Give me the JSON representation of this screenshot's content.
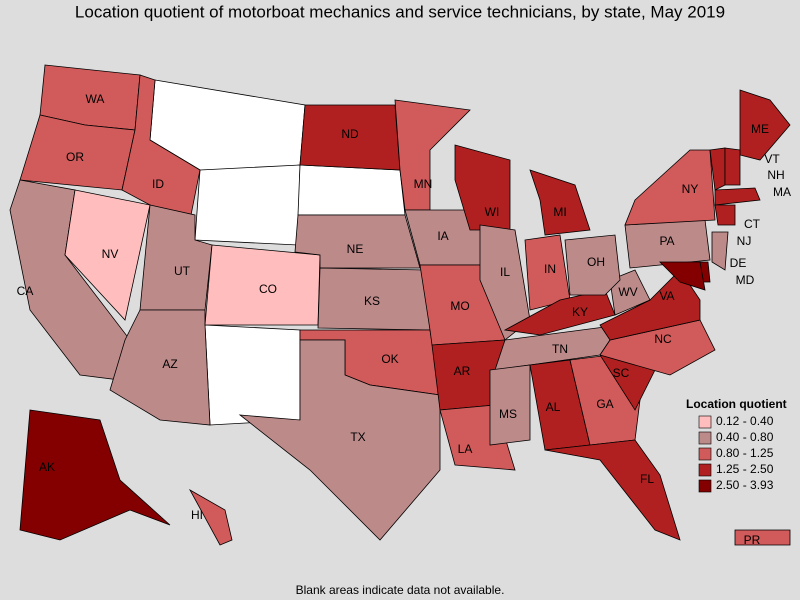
{
  "header": {
    "title": "Location quotient of motorboat mechanics and service technicians, by state, May 2019"
  },
  "legend": {
    "title": "Location quotient",
    "items": [
      {
        "label": "0.12 - 0.40",
        "color": "#ffbdbd"
      },
      {
        "label": "0.40 - 0.80",
        "color": "#bd8a8a"
      },
      {
        "label": "0.80 - 1.25",
        "color": "#d15a5a"
      },
      {
        "label": "1.25 - 2.50",
        "color": "#b02020"
      },
      {
        "label": "2.50 - 3.93",
        "color": "#840000"
      }
    ]
  },
  "states": [
    {
      "label": "WA",
      "class": 2
    },
    {
      "label": "OR",
      "class": 2
    },
    {
      "label": "CA",
      "class": 1
    },
    {
      "label": "NV",
      "class": 0
    },
    {
      "label": "ID",
      "class": 2
    },
    {
      "label": "UT",
      "class": 1
    },
    {
      "label": "AZ",
      "class": 1
    },
    {
      "label": "CO",
      "class": 0
    },
    {
      "label": "ND",
      "class": 3
    },
    {
      "label": "MN",
      "class": 2
    },
    {
      "label": "NE",
      "class": 1
    },
    {
      "label": "KS",
      "class": 1
    },
    {
      "label": "OK",
      "class": 2
    },
    {
      "label": "TX",
      "class": 1
    },
    {
      "label": "IA",
      "class": 1
    },
    {
      "label": "MO",
      "class": 2
    },
    {
      "label": "AR",
      "class": 3
    },
    {
      "label": "LA",
      "class": 2
    },
    {
      "label": "WI",
      "class": 3
    },
    {
      "label": "IL",
      "class": 1
    },
    {
      "label": "MI",
      "class": 3
    },
    {
      "label": "IN",
      "class": 2
    },
    {
      "label": "KY",
      "class": 3
    },
    {
      "label": "TN",
      "class": 1
    },
    {
      "label": "MS",
      "class": 1
    },
    {
      "label": "AL",
      "class": 3
    },
    {
      "label": "GA",
      "class": 2
    },
    {
      "label": "FL",
      "class": 3
    },
    {
      "label": "SC",
      "class": 3
    },
    {
      "label": "NC",
      "class": 2
    },
    {
      "label": "VA",
      "class": 3
    },
    {
      "label": "WV",
      "class": 1
    },
    {
      "label": "OH",
      "class": 1
    },
    {
      "label": "PA",
      "class": 1
    },
    {
      "label": "NY",
      "class": 2
    },
    {
      "label": "ME",
      "class": 3
    },
    {
      "label": "VT",
      "class": 3
    },
    {
      "label": "NH",
      "class": 3
    },
    {
      "label": "MA",
      "class": 3
    },
    {
      "label": "CT",
      "class": 3
    },
    {
      "label": "NJ",
      "class": 1
    },
    {
      "label": "DE",
      "class": 4
    },
    {
      "label": "MD",
      "class": 4
    },
    {
      "label": "AK",
      "class": 4
    },
    {
      "label": "HI",
      "class": 2
    },
    {
      "label": "PR",
      "class": 2
    }
  ],
  "footnote": "Blank areas indicate data not available."
}
